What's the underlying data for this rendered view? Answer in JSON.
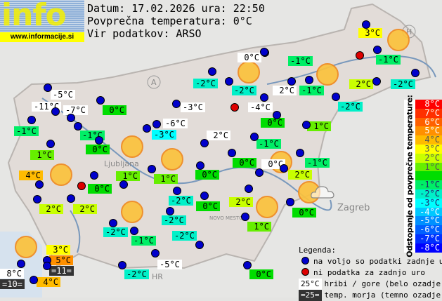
{
  "header": {
    "logo_text": "info",
    "logo_url": "www.informacije.si",
    "date_line": "Datum: 17.02.2026 ura: 22:50",
    "avg_line": "Povprečna temperatura: 0°C",
    "source_line": "Vir podatkov: ARSO"
  },
  "map_labels": {
    "country_a": "A",
    "country_h": "H",
    "country_hr": "HR",
    "city_ljubljana": "Ljubljana",
    "city_zagreb": "Zagreb",
    "city_novo_mesto": "NOVO MESTO"
  },
  "stations": [
    {
      "t": "3°C",
      "k": "c3"
    },
    {
      "t": "0°C",
      "k": "w"
    },
    {
      "t": "-1°C",
      "k": "c-1"
    },
    {
      "t": "-1°C",
      "k": "c-1"
    },
    {
      "t": "-2°C",
      "k": "c-2"
    },
    {
      "t": "-2°C",
      "k": "c-2"
    },
    {
      "t": "2°C",
      "k": "w"
    },
    {
      "t": "-1°C",
      "k": "c-1"
    },
    {
      "t": "2°C",
      "k": "c2"
    },
    {
      "t": "-2°C",
      "k": "c-2"
    },
    {
      "t": "-2°C",
      "k": "c-2"
    },
    {
      "t": "-5°C",
      "k": "w"
    },
    {
      "t": "-11°C",
      "k": "w"
    },
    {
      "t": "-7°C",
      "k": "w"
    },
    {
      "t": "0°C",
      "k": "c0"
    },
    {
      "t": "-3°C",
      "k": "w"
    },
    {
      "t": "-4°C",
      "k": "w"
    },
    {
      "t": "0°C",
      "k": "c0"
    },
    {
      "t": "-1°C",
      "k": "c-1"
    },
    {
      "t": "-1°C",
      "k": "c-1"
    },
    {
      "t": "-6°C",
      "k": "w"
    },
    {
      "t": "-3°C",
      "k": "c-3"
    },
    {
      "t": "2°C",
      "k": "w"
    },
    {
      "t": "-1°C",
      "k": "c-1"
    },
    {
      "t": "1°C",
      "k": "c1"
    },
    {
      "t": "0°C",
      "k": "c0"
    },
    {
      "t": "1°C",
      "k": "c1"
    },
    {
      "t": "0°C",
      "k": "c0"
    },
    {
      "t": "0°C",
      "k": "w"
    },
    {
      "t": "-1°C",
      "k": "c-1"
    },
    {
      "t": "2°C",
      "k": "c2"
    },
    {
      "t": "4°C",
      "k": "c4"
    },
    {
      "t": "1°C",
      "k": "c1"
    },
    {
      "t": "0°C",
      "k": "c0"
    },
    {
      "t": "1°C",
      "k": "c1"
    },
    {
      "t": "0°C",
      "k": "c0"
    },
    {
      "t": "-2°C",
      "k": "c-2"
    },
    {
      "t": "0°C",
      "k": "c0"
    },
    {
      "t": "2°C",
      "k": "c2"
    },
    {
      "t": "0°C",
      "k": "c0"
    },
    {
      "t": "2°C",
      "k": "c2"
    },
    {
      "t": "2°C",
      "k": "c2"
    },
    {
      "t": "-2°C",
      "k": "c-2"
    },
    {
      "t": "-1°C",
      "k": "c-1"
    },
    {
      "t": "-2°C",
      "k": "c-2"
    },
    {
      "t": "-2°C",
      "k": "c-2"
    },
    {
      "t": "1°C",
      "k": "c1"
    },
    {
      "t": "-5°C",
      "k": "w"
    },
    {
      "t": "-2°C",
      "k": "c-2"
    },
    {
      "t": "0°C",
      "k": "c0"
    },
    {
      "t": "3°C",
      "k": "c3"
    },
    {
      "t": "5°C",
      "k": "c5"
    },
    {
      "t": "=11=",
      "k": "s"
    },
    {
      "t": "8°C",
      "k": "w"
    },
    {
      "t": "=10=",
      "k": "s"
    },
    {
      "t": "4°C",
      "k": "c4"
    }
  ],
  "scale": {
    "title": "Odstopanje od povprečne temperature:",
    "rows": [
      {
        "t": "8°C",
        "c": "#ff0000"
      },
      {
        "t": "7°C",
        "c": "#ff3000"
      },
      {
        "t": "6°C",
        "c": "#ff6000"
      },
      {
        "t": "5°C",
        "c": "#ff9000"
      },
      {
        "t": "4°C",
        "c": "#ffbb00"
      },
      {
        "t": "3°C",
        "c": "#ffff00"
      },
      {
        "t": "2°C",
        "c": "#c8ff00"
      },
      {
        "t": "1°C",
        "c": "#66ee00"
      },
      {
        "t": "",
        "c": "#00dd00"
      },
      {
        "t": "-1°C",
        "c": "#00ee66"
      },
      {
        "t": "-2°C",
        "c": "#00f0c8"
      },
      {
        "t": "-3°C",
        "c": "#00ffff"
      },
      {
        "t": "-4°C",
        "c": "#00c8ff"
      },
      {
        "t": "-5°C",
        "c": "#0090ff"
      },
      {
        "t": "-6°C",
        "c": "#0060ff"
      },
      {
        "t": "-7°C",
        "c": "#0030ff"
      },
      {
        "t": "-8°C",
        "c": "#0000ff"
      }
    ]
  },
  "legend": {
    "title": "Legenda:",
    "blue": "na voljo so podatki zadnje ure",
    "red": "ni podatka za zadnjo uro",
    "mountain_sample": "25°C",
    "mountain": "hribi / gore (belo ozadje)",
    "sea_sample": "=25=",
    "sea": "temp. morja (temno ozadje)"
  },
  "colors": {
    "station_dot": "#0000cc",
    "missing_dot": "#dd0000",
    "sun": "#fbc23c"
  },
  "weather_icons": [
    "sun",
    "sun",
    "sun",
    "sun",
    "sun",
    "sun",
    "sun",
    "sun",
    "sun",
    "sun-cloud",
    "sun"
  ]
}
